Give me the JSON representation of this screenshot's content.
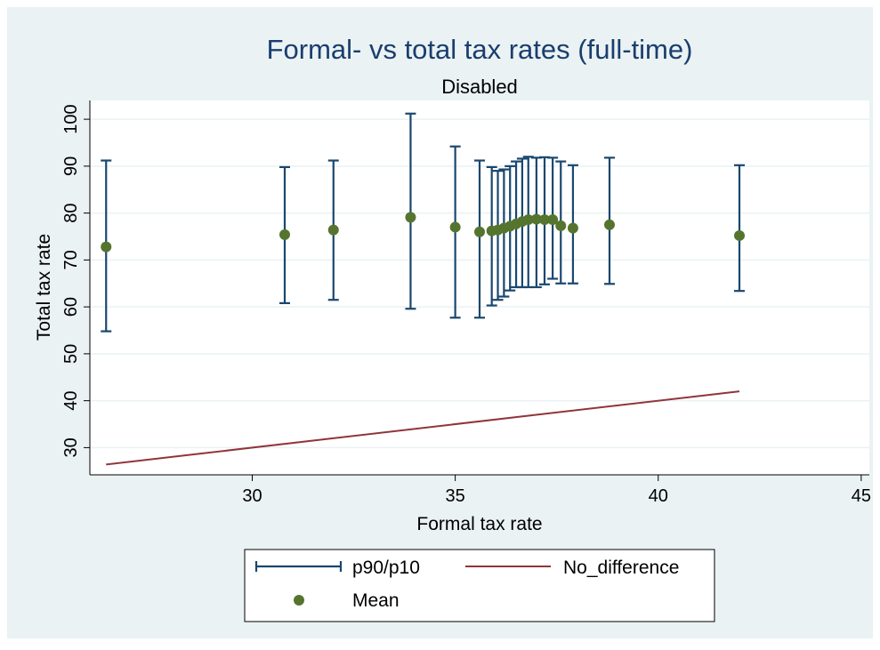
{
  "chart_data": {
    "type": "scatter",
    "title": "Formal- vs total tax rates (full-time)",
    "subtitle": "Disabled",
    "xlabel": "Formal tax rate",
    "ylabel": "Total tax rate",
    "xlim": [
      26,
      45.2
    ],
    "ylim": [
      24.2,
      104
    ],
    "x_ticks": [
      30,
      35,
      40,
      45
    ],
    "y_ticks": [
      30,
      40,
      50,
      60,
      70,
      80,
      90,
      100
    ],
    "grid": true,
    "legend_position": "bottom",
    "colors": {
      "outer_background": "#eaf2f3",
      "plot_background": "#ffffff",
      "grid": "#eaf2f3",
      "title": "#1a3e6e",
      "errorbar": "#1a476f",
      "mean": "#55752f",
      "line": "#90353b"
    },
    "legend": [
      {
        "key": "errorbar",
        "label": "p90/p10"
      },
      {
        "key": "line",
        "label": "No_difference"
      },
      {
        "key": "mean",
        "label": "Mean"
      }
    ],
    "series": [
      {
        "name": "p90/p10",
        "kind": "range",
        "x": [
          26.4,
          30.8,
          32.0,
          33.9,
          35.0,
          35.6,
          35.9,
          36.05,
          36.2,
          36.35,
          36.5,
          36.65,
          36.8,
          37.0,
          37.2,
          37.4,
          37.6,
          37.9,
          38.8,
          42.0
        ],
        "high": [
          91.2,
          89.8,
          91.2,
          101.2,
          94.2,
          91.2,
          89.8,
          89.0,
          89.3,
          90.0,
          91.0,
          91.6,
          92.0,
          91.8,
          91.9,
          91.8,
          91.0,
          90.2,
          91.8,
          90.2
        ],
        "low": [
          54.8,
          60.8,
          61.5,
          59.6,
          57.7,
          57.7,
          60.3,
          61.5,
          62.2,
          63.5,
          64.2,
          64.2,
          64.2,
          64.2,
          64.8,
          66.0,
          65.0,
          65.0,
          64.9,
          63.4
        ]
      },
      {
        "name": "Mean",
        "kind": "scatter",
        "x": [
          26.4,
          30.8,
          32.0,
          33.9,
          35.0,
          35.6,
          35.9,
          36.05,
          36.2,
          36.35,
          36.5,
          36.65,
          36.8,
          37.0,
          37.2,
          37.4,
          37.6,
          37.9,
          38.8,
          42.0
        ],
        "y": [
          72.8,
          75.4,
          76.4,
          79.1,
          77.0,
          76.0,
          76.2,
          76.4,
          76.8,
          77.2,
          77.7,
          78.2,
          78.6,
          78.7,
          78.6,
          78.6,
          77.3,
          76.8,
          77.5,
          75.2
        ]
      },
      {
        "name": "No_difference",
        "kind": "line",
        "x": [
          26.4,
          42.0
        ],
        "y": [
          26.4,
          42.0
        ]
      }
    ]
  }
}
